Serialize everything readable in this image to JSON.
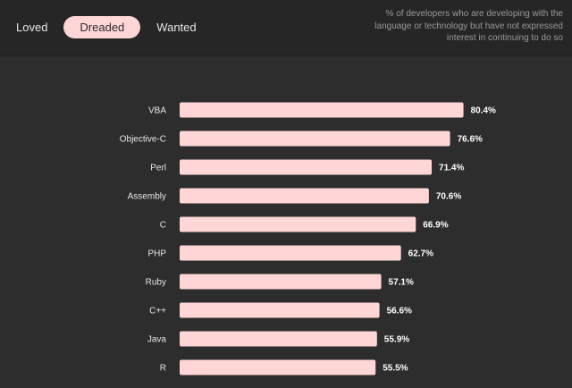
{
  "tabs": [
    {
      "label": "Loved",
      "active": false
    },
    {
      "label": "Dreaded",
      "active": true
    },
    {
      "label": "Wanted",
      "active": false
    }
  ],
  "description": "% of developers who are developing with the language or technology but have not expressed interest in continuing to do so",
  "colors": {
    "background": "#2d2d2d",
    "header_background": "#262626",
    "bar": "#ffd6d6",
    "active_tab": "#ffd6d6"
  },
  "chart_data": {
    "type": "bar",
    "orientation": "horizontal",
    "categories": [
      "VBA",
      "Objective-C",
      "Perl",
      "Assembly",
      "C",
      "PHP",
      "Ruby",
      "C++",
      "Java",
      "R"
    ],
    "values": [
      80.4,
      76.6,
      71.4,
      70.6,
      66.9,
      62.7,
      57.1,
      56.6,
      55.9,
      55.5
    ],
    "value_labels": [
      "80.4%",
      "76.6%",
      "71.4%",
      "70.6%",
      "66.9%",
      "62.7%",
      "57.1%",
      "56.6%",
      "55.9%",
      "55.5%"
    ],
    "xlim": [
      0,
      100
    ],
    "grid": false,
    "legend": "none"
  }
}
